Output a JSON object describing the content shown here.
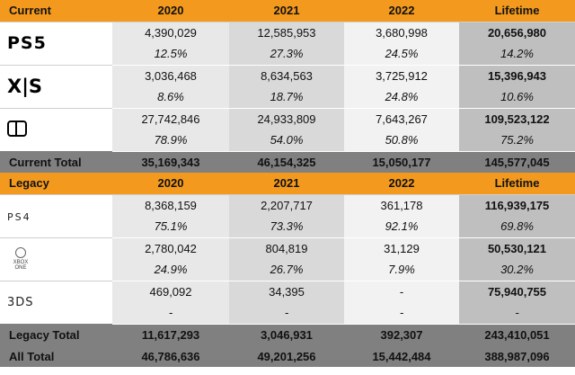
{
  "current": {
    "header": {
      "label": "Current",
      "cols": [
        "2020",
        "2021",
        "2022",
        "Lifetime"
      ]
    },
    "rows": [
      {
        "logo": "PS5",
        "values": [
          "4,390,029",
          "12,585,953",
          "3,680,998",
          "20,656,980"
        ],
        "pcts": [
          "12.5%",
          "27.3%",
          "24.5%",
          "14.2%"
        ]
      },
      {
        "logo": "X|S",
        "values": [
          "3,036,468",
          "8,634,563",
          "3,725,912",
          "15,396,943"
        ],
        "pcts": [
          "8.6%",
          "18.7%",
          "24.8%",
          "10.6%"
        ]
      },
      {
        "logo": "switch-icon",
        "values": [
          "27,742,846",
          "24,933,809",
          "7,643,267",
          "109,523,122"
        ],
        "pcts": [
          "78.9%",
          "54.0%",
          "50.8%",
          "75.2%"
        ]
      }
    ],
    "total": {
      "label": "Current Total",
      "values": [
        "35,169,343",
        "46,154,325",
        "15,050,177",
        "145,577,045"
      ]
    }
  },
  "legacy": {
    "header": {
      "label": "Legacy",
      "cols": [
        "2020",
        "2021",
        "2022",
        "Lifetime"
      ]
    },
    "rows": [
      {
        "logo": "PS4",
        "values": [
          "8,368,159",
          "2,207,717",
          "361,178",
          "116,939,175"
        ],
        "pcts": [
          "75.1%",
          "73.3%",
          "92.1%",
          "69.8%"
        ]
      },
      {
        "logo": "XBOX ONE",
        "values": [
          "2,780,042",
          "804,819",
          "31,129",
          "50,530,121"
        ],
        "pcts": [
          "24.9%",
          "26.7%",
          "7.9%",
          "30.2%"
        ]
      },
      {
        "logo": "3DS",
        "values": [
          "469,092",
          "34,395",
          "-",
          "75,940,755"
        ],
        "pcts": [
          "-",
          "-",
          "-",
          "-"
        ]
      }
    ],
    "total": {
      "label": "Legacy Total",
      "values": [
        "11,617,293",
        "3,046,931",
        "392,307",
        "243,410,051"
      ]
    }
  },
  "all_total": {
    "label": "All Total",
    "values": [
      "46,786,636",
      "49,201,256",
      "15,442,484",
      "388,987,096"
    ]
  }
}
